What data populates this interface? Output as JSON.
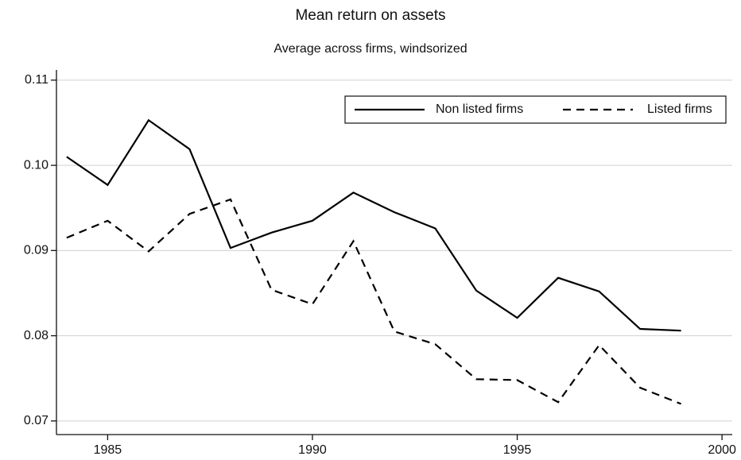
{
  "chart_data": {
    "type": "line",
    "title": "Mean return on assets",
    "subtitle": "Average across firms, windsorized",
    "x": [
      1984,
      1985,
      1986,
      1987,
      1988,
      1989,
      1990,
      1991,
      1992,
      1993,
      1994,
      1995,
      1996,
      1997,
      1998,
      1999
    ],
    "series": [
      {
        "name": "Non listed firms",
        "color": "#000000",
        "dash": "solid",
        "values": [
          0.101,
          0.0977,
          0.1053,
          0.1019,
          0.0903,
          0.0921,
          0.0935,
          0.0968,
          0.0945,
          0.0926,
          0.0853,
          0.0821,
          0.0868,
          0.0852,
          0.0808,
          0.0806
        ]
      },
      {
        "name": "Listed firms",
        "color": "#000000",
        "dash": "dashed",
        "values": [
          0.0915,
          0.0935,
          0.0899,
          0.0943,
          0.096,
          0.0854,
          0.0837,
          0.0911,
          0.0805,
          0.079,
          0.0749,
          0.0748,
          0.0722,
          0.0789,
          0.0739,
          0.072
        ]
      }
    ],
    "xlim": [
      1983.75,
      2000.25
    ],
    "xticks": [
      1985,
      1990,
      1995,
      2000
    ],
    "ylim": [
      0.0684,
      0.1112
    ],
    "yticks": [
      0.07,
      0.08,
      0.09,
      {
        "value": 0.1,
        "label": "0.10"
      },
      0.11
    ],
    "grid": true,
    "legend": "top right"
  }
}
